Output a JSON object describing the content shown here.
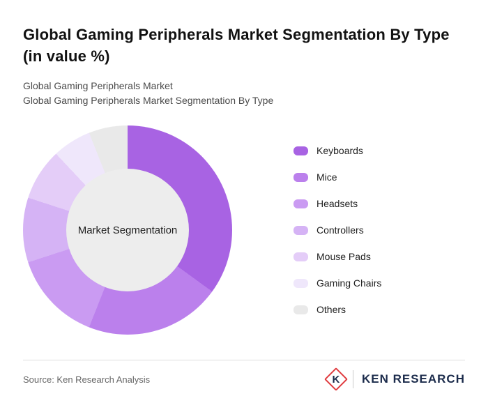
{
  "page": {
    "title": "Global Gaming Peripherals Market Segmentation By Type (in value %)",
    "subtitle_1": "Global Gaming Peripherals Market",
    "subtitle_2": "Global Gaming Peripherals Market Segmentation By Type"
  },
  "chart_data": {
    "type": "pie",
    "subtype": "donut",
    "title": "Global Gaming Peripherals Market Segmentation By Type (in value %)",
    "center_label": "Market Segmentation",
    "categories": [
      "Keyboards",
      "Mice",
      "Headsets",
      "Controllers",
      "Mouse Pads",
      "Gaming Chairs",
      "Others"
    ],
    "values": [
      35,
      21,
      14,
      10,
      8,
      6,
      6
    ],
    "colors": [
      "#a863e3",
      "#bb80ec",
      "#ca9bf2",
      "#d5b3f5",
      "#e4cdf8",
      "#efe7fb",
      "#e9e9e9"
    ],
    "legend_position": "right",
    "start_angle_deg": 0,
    "direction": "clockwise",
    "hole_color": "#ededed"
  },
  "footer": {
    "source": "Source: Ken Research Analysis",
    "logo_mark": "K",
    "logo_text": "KEN RESEARCH",
    "brand_red": "#e03a3e",
    "brand_navy": "#1b2b4b"
  }
}
